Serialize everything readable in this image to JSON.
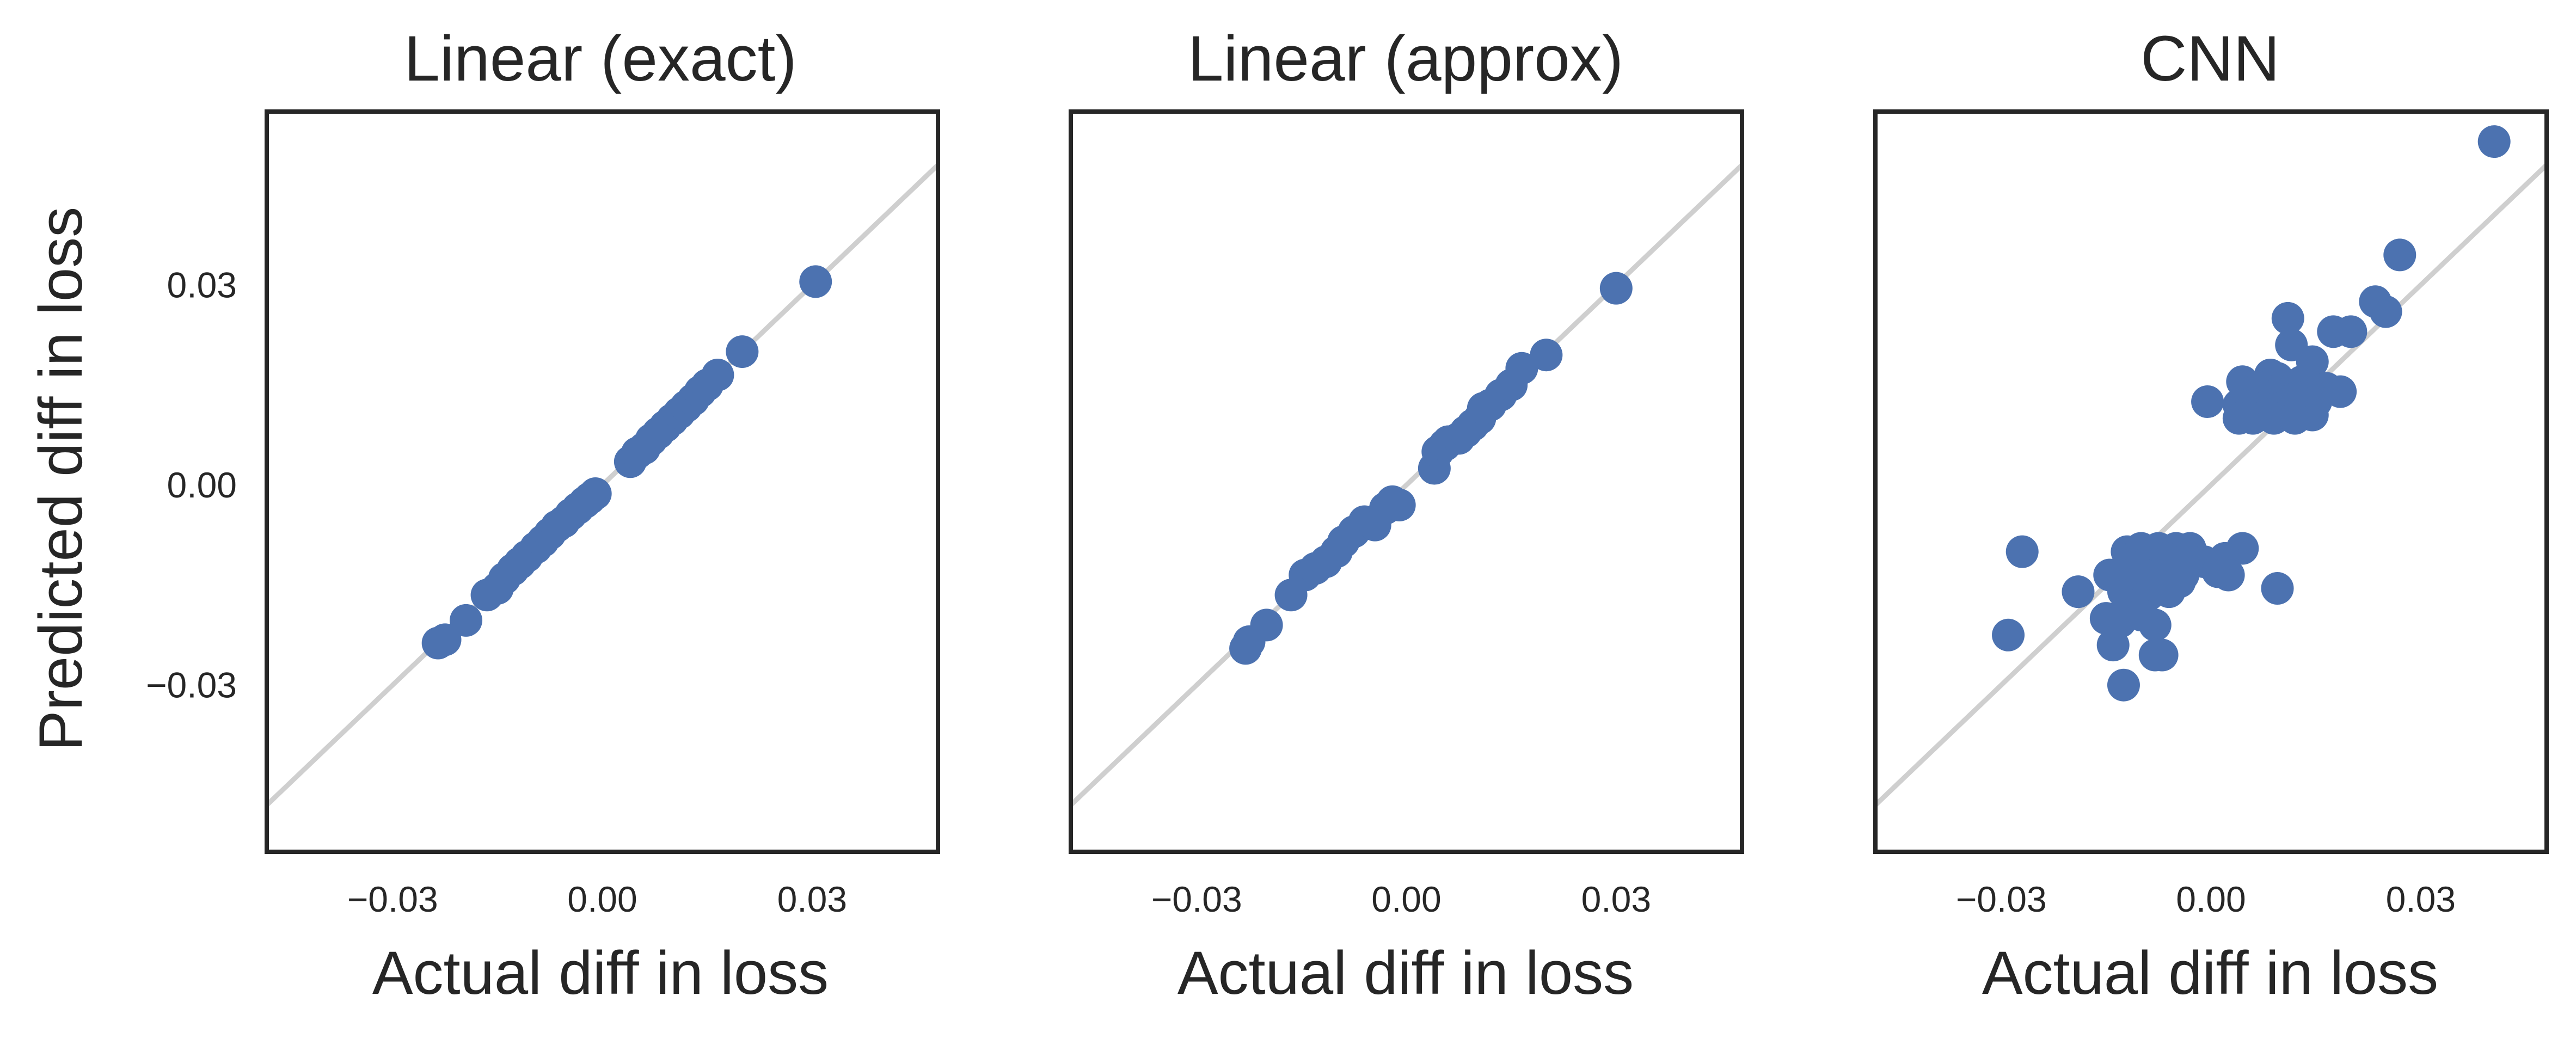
{
  "figure": {
    "y_axis_label": "Predicted diff in loss"
  },
  "chart_data": [
    {
      "type": "scatter",
      "title": "Linear (exact)",
      "xlabel": "Actual diff in loss",
      "ylabel": "Predicted diff in loss",
      "xlim": [
        -0.048,
        0.048
      ],
      "ylim": [
        -0.055,
        0.056
      ],
      "xticks": [
        -0.03,
        0.0,
        0.03
      ],
      "yticks": [
        -0.03,
        0.0,
        0.03
      ],
      "xtick_labels": [
        "−0.03",
        "0.00",
        "0.03"
      ],
      "ytick_labels": [
        "−0.03",
        "0.00",
        "0.03"
      ],
      "reference_line": "y = x",
      "grid": false,
      "legend": "none",
      "point_color": "#4c72b0",
      "reference_color": "#cfcfcf",
      "points": [
        [
          -0.0235,
          -0.0237
        ],
        [
          -0.0225,
          -0.0232
        ],
        [
          -0.0195,
          -0.0203
        ],
        [
          -0.0165,
          -0.0165
        ],
        [
          -0.015,
          -0.0155
        ],
        [
          -0.014,
          -0.014
        ],
        [
          -0.0128,
          -0.0127
        ],
        [
          -0.0118,
          -0.0117
        ],
        [
          -0.0108,
          -0.0107
        ],
        [
          -0.0095,
          -0.0094
        ],
        [
          -0.0085,
          -0.0084
        ],
        [
          -0.0075,
          -0.0073
        ],
        [
          -0.0065,
          -0.0062
        ],
        [
          -0.0055,
          -0.0055
        ],
        [
          -0.0045,
          -0.0044
        ],
        [
          -0.0035,
          -0.0035
        ],
        [
          -0.0025,
          -0.0026
        ],
        [
          -0.0018,
          -0.002
        ],
        [
          -0.001,
          -0.0013
        ],
        [
          0.004,
          0.0035
        ],
        [
          0.005,
          0.0048
        ],
        [
          0.006,
          0.0055
        ],
        [
          0.007,
          0.0068
        ],
        [
          0.008,
          0.0078
        ],
        [
          0.009,
          0.0088
        ],
        [
          0.01,
          0.0098
        ],
        [
          0.011,
          0.0108
        ],
        [
          0.012,
          0.0118
        ],
        [
          0.013,
          0.0128
        ],
        [
          0.014,
          0.014
        ],
        [
          0.015,
          0.015
        ],
        [
          0.0165,
          0.0165
        ],
        [
          0.02,
          0.02
        ],
        [
          0.0305,
          0.0305
        ]
      ]
    },
    {
      "type": "scatter",
      "title": "Linear (approx)",
      "xlabel": "Actual diff in loss",
      "ylabel": "",
      "xlim": [
        -0.048,
        0.048
      ],
      "ylim": [
        -0.055,
        0.056
      ],
      "xticks": [
        -0.03,
        0.0,
        0.03
      ],
      "yticks": [],
      "xtick_labels": [
        "−0.03",
        "0.00",
        "0.03"
      ],
      "ytick_labels": [],
      "reference_line": "y = x",
      "grid": false,
      "legend": "none",
      "point_color": "#4c72b0",
      "reference_color": "#cfcfcf",
      "points": [
        [
          -0.023,
          -0.0245
        ],
        [
          -0.0225,
          -0.0235
        ],
        [
          -0.02,
          -0.021
        ],
        [
          -0.0165,
          -0.0165
        ],
        [
          -0.0145,
          -0.0135
        ],
        [
          -0.013,
          -0.0125
        ],
        [
          -0.0115,
          -0.0115
        ],
        [
          -0.01,
          -0.01
        ],
        [
          -0.009,
          -0.0085
        ],
        [
          -0.0075,
          -0.007
        ],
        [
          -0.006,
          -0.0055
        ],
        [
          -0.0045,
          -0.006
        ],
        [
          -0.003,
          -0.0035
        ],
        [
          -0.002,
          -0.0025
        ],
        [
          -0.001,
          -0.003
        ],
        [
          0.004,
          0.0025
        ],
        [
          0.0045,
          0.005
        ],
        [
          0.0055,
          0.006
        ],
        [
          0.006,
          0.0065
        ],
        [
          0.0075,
          0.007
        ],
        [
          0.0085,
          0.008
        ],
        [
          0.0095,
          0.009
        ],
        [
          0.0105,
          0.01
        ],
        [
          0.011,
          0.0115
        ],
        [
          0.012,
          0.012
        ],
        [
          0.0135,
          0.0135
        ],
        [
          0.015,
          0.015
        ],
        [
          0.0165,
          0.0175
        ],
        [
          0.02,
          0.0195
        ],
        [
          0.03,
          0.0295
        ]
      ]
    },
    {
      "type": "scatter",
      "title": "CNN",
      "xlabel": "Actual diff in loss",
      "ylabel": "",
      "xlim": [
        -0.048,
        0.048
      ],
      "ylim": [
        -0.055,
        0.056
      ],
      "xticks": [
        -0.03,
        0.0,
        0.03
      ],
      "yticks": [],
      "xtick_labels": [
        "−0.03",
        "0.00",
        "0.03"
      ],
      "ytick_labels": [],
      "reference_line": "y = x",
      "grid": false,
      "legend": "none",
      "point_color": "#4c72b0",
      "reference_color": "#cfcfcf",
      "points": [
        [
          0.0405,
          0.0515
        ],
        [
          0.027,
          0.0345
        ],
        [
          0.0235,
          0.0275
        ],
        [
          0.025,
          0.026
        ],
        [
          0.011,
          0.025
        ],
        [
          0.0175,
          0.023
        ],
        [
          0.02,
          0.023
        ],
        [
          0.0115,
          0.021
        ],
        [
          0.0145,
          0.0185
        ],
        [
          0.0085,
          0.0165
        ],
        [
          0.0095,
          0.016
        ],
        [
          0.013,
          0.0155
        ],
        [
          0.0045,
          0.0155
        ],
        [
          0.0105,
          0.015
        ],
        [
          0.0165,
          0.0145
        ],
        [
          0.0185,
          0.014
        ],
        [
          0.006,
          0.014
        ],
        [
          0.009,
          0.013
        ],
        [
          0.012,
          0.013
        ],
        [
          0.015,
          0.0125
        ],
        [
          -0.0005,
          0.0125
        ],
        [
          0.004,
          0.012
        ],
        [
          0.0075,
          0.0115
        ],
        [
          0.01,
          0.0115
        ],
        [
          0.0135,
          0.011
        ],
        [
          0.005,
          0.0105
        ],
        [
          0.008,
          0.0105
        ],
        [
          0.011,
          0.0105
        ],
        [
          0.0145,
          0.0105
        ],
        [
          0.004,
          0.01
        ],
        [
          0.006,
          0.01
        ],
        [
          0.009,
          0.01
        ],
        [
          0.012,
          0.01
        ],
        [
          -0.027,
          -0.01
        ],
        [
          -0.012,
          -0.01
        ],
        [
          -0.01,
          -0.0095
        ],
        [
          -0.0075,
          -0.0095
        ],
        [
          -0.005,
          -0.0095
        ],
        [
          -0.003,
          -0.0095
        ],
        [
          0.0045,
          -0.0095
        ],
        [
          -0.011,
          -0.011
        ],
        [
          -0.009,
          -0.0115
        ],
        [
          -0.0065,
          -0.011
        ],
        [
          -0.004,
          -0.0115
        ],
        [
          -0.001,
          -0.0115
        ],
        [
          0.002,
          -0.011
        ],
        [
          -0.0145,
          -0.0135
        ],
        [
          -0.012,
          -0.013
        ],
        [
          -0.0095,
          -0.0135
        ],
        [
          -0.007,
          -0.0135
        ],
        [
          -0.004,
          -0.0135
        ],
        [
          0.0025,
          -0.0135
        ],
        [
          -0.0045,
          -0.0145
        ],
        [
          0.001,
          -0.013
        ],
        [
          -0.019,
          -0.016
        ],
        [
          -0.0125,
          -0.016
        ],
        [
          -0.009,
          -0.0165
        ],
        [
          -0.006,
          -0.016
        ],
        [
          0.0095,
          -0.0155
        ],
        [
          -0.015,
          -0.02
        ],
        [
          -0.01,
          -0.0195
        ],
        [
          -0.008,
          -0.021
        ],
        [
          -0.013,
          -0.0205
        ],
        [
          -0.029,
          -0.0225
        ],
        [
          -0.014,
          -0.024
        ],
        [
          -0.008,
          -0.0255
        ],
        [
          -0.007,
          -0.0255
        ],
        [
          -0.0125,
          -0.03
        ]
      ]
    }
  ]
}
